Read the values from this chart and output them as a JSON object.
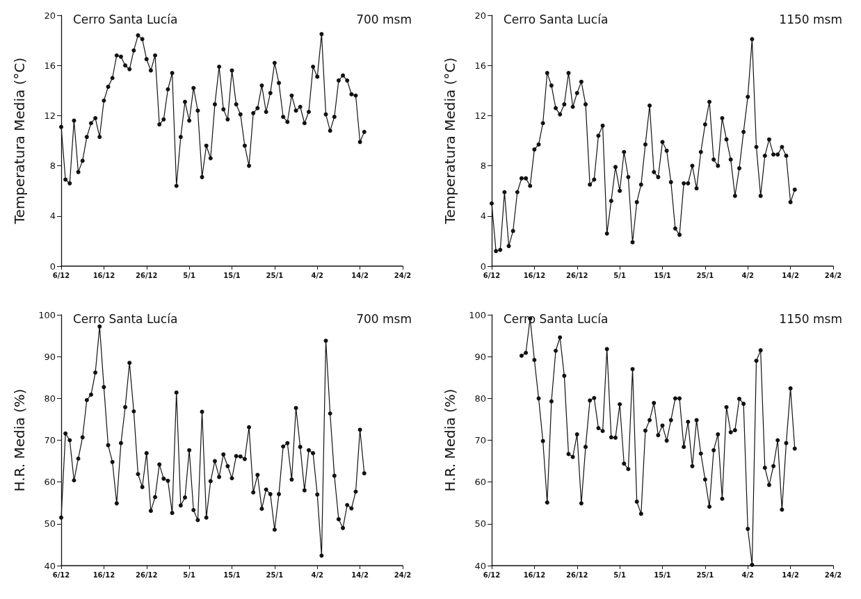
{
  "chart_data": [
    {
      "type": "line",
      "title": "Cerro Santa Lucía",
      "subtitle": "700 msm",
      "ylabel": "Temperatura Media (°C)",
      "color": "#111111",
      "marker": "circle",
      "line_style": "solid",
      "categories": [
        "6/12",
        null,
        null,
        null,
        null,
        null,
        null,
        null,
        null,
        null,
        "16/12",
        null,
        null,
        null,
        null,
        null,
        null,
        null,
        null,
        null,
        "26/12",
        null,
        null,
        null,
        null,
        null,
        null,
        null,
        null,
        null,
        "5/1",
        null,
        null,
        null,
        null,
        null,
        null,
        null,
        null,
        null,
        "15/1",
        null,
        null,
        null,
        null,
        null,
        null,
        null,
        null,
        null,
        "25/1",
        null,
        null,
        null,
        null,
        null,
        null,
        null,
        null,
        null,
        "4/2",
        null,
        null,
        null,
        null,
        null,
        null,
        null,
        null,
        null,
        "14/2",
        null,
        null,
        null,
        null,
        null,
        null,
        null,
        null,
        null,
        "24/2"
      ],
      "ylim": [
        0,
        20
      ],
      "yticks": [
        0,
        4,
        8,
        12,
        16,
        20
      ],
      "values": [
        11.1,
        6.9,
        6.6,
        11.6,
        7.5,
        8.4,
        10.3,
        11.4,
        11.8,
        10.3,
        13.2,
        14.3,
        15.0,
        16.8,
        16.7,
        16.0,
        15.7,
        17.2,
        18.4,
        18.1,
        16.5,
        15.6,
        16.8,
        11.3,
        11.7,
        14.1,
        15.4,
        6.4,
        10.3,
        13.1,
        11.6,
        14.2,
        12.4,
        7.1,
        9.6,
        8.6,
        12.9,
        15.9,
        12.5,
        11.7,
        15.6,
        12.9,
        12.1,
        9.6,
        8.0,
        12.2,
        12.6,
        14.4,
        12.3,
        13.8,
        16.2,
        14.6,
        11.9,
        11.5,
        13.6,
        12.4,
        12.7,
        11.4,
        12.3,
        15.9,
        15.1,
        18.5,
        12.1,
        10.8,
        11.9,
        14.8,
        15.2,
        14.8,
        13.7,
        13.6,
        9.9,
        10.7,
        null,
        null,
        null,
        null,
        null,
        null,
        null,
        null,
        null
      ]
    },
    {
      "type": "line",
      "title": "Cerro Santa Lucía",
      "subtitle": "1150 msm",
      "ylabel": "Temperatura Media (°C)",
      "color": "#111111",
      "marker": "circle",
      "line_style": "solid",
      "categories": [
        "6/12",
        null,
        null,
        null,
        null,
        null,
        null,
        null,
        null,
        null,
        "16/12",
        null,
        null,
        null,
        null,
        null,
        null,
        null,
        null,
        null,
        "26/12",
        null,
        null,
        null,
        null,
        null,
        null,
        null,
        null,
        null,
        "5/1",
        null,
        null,
        null,
        null,
        null,
        null,
        null,
        null,
        null,
        "15/1",
        null,
        null,
        null,
        null,
        null,
        null,
        null,
        null,
        null,
        "25/1",
        null,
        null,
        null,
        null,
        null,
        null,
        null,
        null,
        null,
        "4/2",
        null,
        null,
        null,
        null,
        null,
        null,
        null,
        null,
        null,
        "14/2",
        null,
        null,
        null,
        null,
        null,
        null,
        null,
        null,
        null,
        "24/2"
      ],
      "ylim": [
        0,
        20
      ],
      "yticks": [
        0,
        4,
        8,
        12,
        16,
        20
      ],
      "values": [
        5.0,
        1.2,
        1.3,
        5.9,
        1.6,
        2.8,
        5.9,
        7.0,
        7.0,
        6.4,
        9.3,
        9.7,
        11.4,
        15.4,
        14.4,
        12.6,
        12.1,
        12.9,
        15.4,
        12.7,
        13.8,
        14.7,
        12.9,
        6.5,
        6.9,
        10.4,
        11.2,
        2.6,
        5.2,
        7.9,
        6.0,
        9.1,
        7.1,
        1.9,
        5.1,
        6.5,
        9.7,
        12.8,
        7.5,
        7.1,
        9.9,
        9.2,
        6.7,
        3.0,
        2.5,
        6.6,
        6.6,
        8.0,
        6.2,
        9.1,
        11.3,
        13.1,
        8.5,
        8.0,
        11.8,
        10.1,
        8.5,
        5.6,
        7.8,
        10.7,
        13.5,
        18.1,
        9.5,
        5.6,
        8.8,
        10.1,
        8.9,
        8.9,
        9.5,
        8.8,
        5.1,
        6.1,
        null,
        null,
        null,
        null,
        null,
        null,
        null,
        null,
        null
      ]
    },
    {
      "type": "line",
      "title": "Cerro Santa Lucía",
      "subtitle": "700 msm",
      "ylabel": "H.R. Media (%)",
      "color": "#111111",
      "marker": "circle",
      "line_style": "solid",
      "categories": [
        "6/12",
        null,
        null,
        null,
        null,
        null,
        null,
        null,
        null,
        null,
        "16/12",
        null,
        null,
        null,
        null,
        null,
        null,
        null,
        null,
        null,
        "26/12",
        null,
        null,
        null,
        null,
        null,
        null,
        null,
        null,
        null,
        "5/1",
        null,
        null,
        null,
        null,
        null,
        null,
        null,
        null,
        null,
        "15/1",
        null,
        null,
        null,
        null,
        null,
        null,
        null,
        null,
        null,
        "25/1",
        null,
        null,
        null,
        null,
        null,
        null,
        null,
        null,
        null,
        "4/2",
        null,
        null,
        null,
        null,
        null,
        null,
        null,
        null,
        null,
        "14/2",
        null,
        null,
        null,
        null,
        null,
        null,
        null,
        null,
        null,
        "24/2"
      ],
      "ylim": [
        40,
        100
      ],
      "yticks": [
        40,
        50,
        60,
        70,
        80,
        90,
        100
      ],
      "values": [
        51.5,
        71.6,
        70.0,
        60.4,
        65.6,
        70.7,
        79.6,
        80.9,
        86.2,
        97.2,
        82.7,
        68.8,
        64.8,
        54.9,
        69.3,
        77.9,
        88.5,
        76.9,
        61.9,
        58.8,
        66.9,
        53.1,
        56.4,
        64.2,
        60.8,
        60.3,
        52.6,
        81.4,
        54.4,
        56.3,
        67.6,
        53.3,
        50.9,
        76.8,
        51.5,
        60.2,
        65.0,
        61.2,
        66.6,
        63.8,
        60.9,
        66.2,
        66.1,
        65.5,
        73.1,
        57.5,
        61.7,
        53.6,
        58.2,
        57.1,
        48.6,
        57.1,
        68.5,
        69.3,
        60.6,
        77.7,
        68.4,
        58.0,
        67.6,
        66.9,
        57.0,
        42.4,
        93.8,
        76.4,
        61.5,
        51.1,
        49.0,
        54.5,
        53.7,
        57.7,
        72.5,
        62.1,
        null,
        null,
        null,
        null,
        null,
        null,
        null,
        null,
        null
      ]
    },
    {
      "type": "line",
      "title": "Cerro Santa Lucía",
      "subtitle": "1150 msm",
      "ylabel": "H.R. Media (%)",
      "color": "#111111",
      "marker": "circle",
      "line_style": "solid",
      "categories": [
        "6/12",
        null,
        null,
        null,
        null,
        null,
        null,
        null,
        null,
        null,
        "16/12",
        null,
        null,
        null,
        null,
        null,
        null,
        null,
        null,
        null,
        "26/12",
        null,
        null,
        null,
        null,
        null,
        null,
        null,
        null,
        null,
        "5/1",
        null,
        null,
        null,
        null,
        null,
        null,
        null,
        null,
        null,
        "15/1",
        null,
        null,
        null,
        null,
        null,
        null,
        null,
        null,
        null,
        "25/1",
        null,
        null,
        null,
        null,
        null,
        null,
        null,
        null,
        null,
        "4/2",
        null,
        null,
        null,
        null,
        null,
        null,
        null,
        null,
        null,
        "14/2",
        null,
        null,
        null,
        null,
        null,
        null,
        null,
        null,
        null,
        "24/2"
      ],
      "ylim": [
        40,
        100
      ],
      "yticks": [
        40,
        50,
        60,
        70,
        80,
        90,
        100
      ],
      "values": [
        null,
        null,
        null,
        null,
        null,
        null,
        null,
        90.2,
        90.9,
        99.1,
        89.2,
        80.0,
        69.8,
        55.1,
        79.3,
        91.4,
        94.6,
        85.4,
        66.7,
        66.0,
        71.4,
        54.9,
        68.4,
        79.5,
        80.1,
        72.9,
        72.2,
        91.8,
        70.7,
        70.6,
        78.6,
        64.4,
        63.1,
        87.0,
        55.3,
        52.4,
        72.3,
        74.8,
        78.9,
        71.2,
        73.5,
        69.9,
        74.8,
        80.0,
        80.0,
        68.4,
        74.4,
        63.8,
        74.8,
        66.8,
        60.6,
        54.1,
        67.6,
        71.4,
        56.0,
        77.9,
        71.9,
        72.4,
        79.9,
        78.7,
        48.8,
        40.2,
        89.0,
        91.5,
        63.4,
        59.3,
        63.8,
        70.0,
        53.4,
        69.3,
        82.4,
        68.0,
        null,
        null,
        null,
        null,
        null,
        null,
        null,
        null,
        null
      ]
    }
  ]
}
